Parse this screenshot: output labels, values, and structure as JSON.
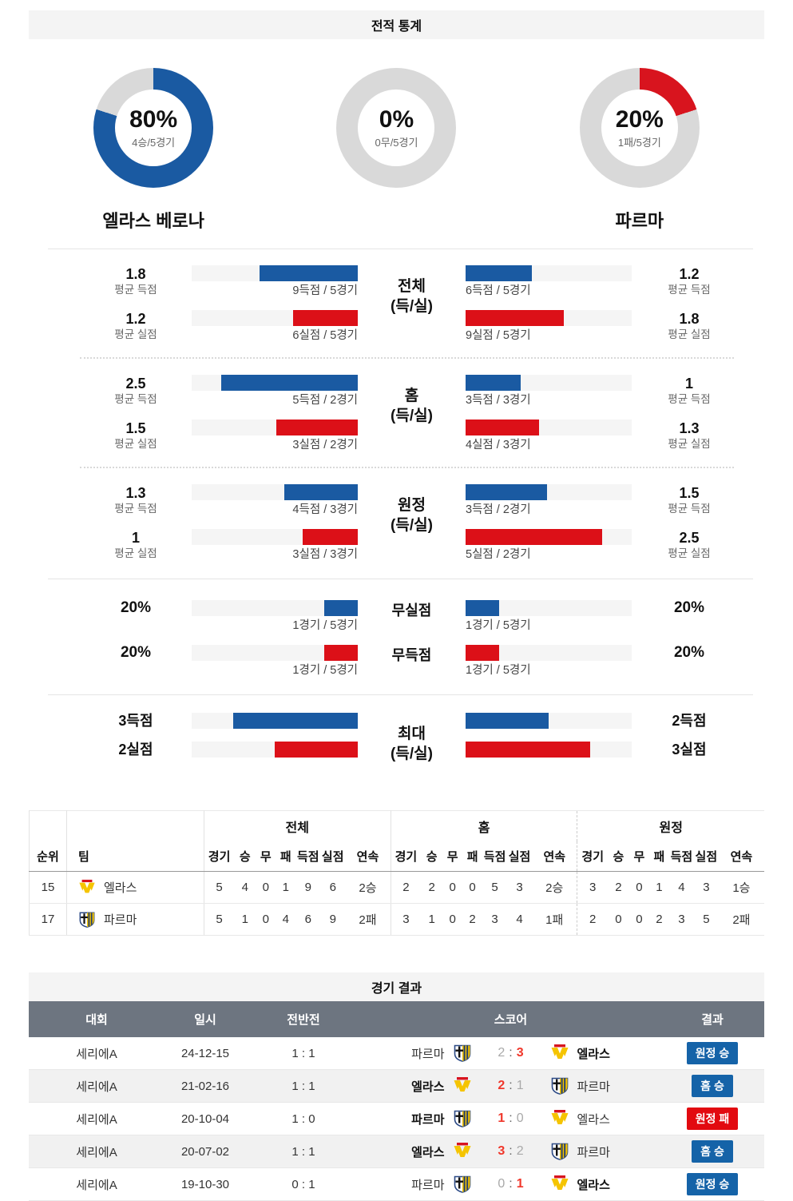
{
  "colors": {
    "accent_blue": "#1a5aa2",
    "accent_red": "#dc1018",
    "donut_gray": "#d9d9d9",
    "track_gray": "#f5f5f5",
    "band_gray": "#f4f4f4",
    "header_slate": "#6d7580",
    "badge_blue": "#1563a8",
    "badge_red": "#e20a10",
    "score_win_red": "#f0372b"
  },
  "stats": {
    "title": "전적 통계",
    "home_team": "엘라스 베로나",
    "away_team": "파르마",
    "donuts": [
      {
        "pct": "80%",
        "sub": "4승/5경기",
        "value": 80
      },
      {
        "pct": "0%",
        "sub": "0무/5경기",
        "value": 0
      },
      {
        "pct": "20%",
        "sub": "1패/5경기",
        "value": 20
      }
    ]
  },
  "compare": [
    {
      "center1": "전체",
      "center2": "(득/실)",
      "rows": [
        {
          "left": {
            "value": "1.8",
            "caption": "평균 득점",
            "pct": 59,
            "sub": "9득점 / 5경기"
          },
          "right": {
            "value": "1.2",
            "caption": "평균 득점",
            "pct": 40,
            "sub": "6득점 / 5경기"
          }
        },
        {
          "left": {
            "value": "1.2",
            "caption": "평균 실점",
            "pct": 39,
            "sub": "6실점 / 5경기"
          },
          "right": {
            "value": "1.8",
            "caption": "평균 실점",
            "pct": 59,
            "sub": "9실점 / 5경기"
          }
        }
      ]
    },
    {
      "center1": "홈",
      "center2": "(득/실)",
      "rows": [
        {
          "left": {
            "value": "2.5",
            "caption": "평균 득점",
            "pct": 82,
            "sub": "5득점 / 2경기"
          },
          "right": {
            "value": "1",
            "caption": "평균 득점",
            "pct": 33,
            "sub": "3득점 / 3경기"
          }
        },
        {
          "left": {
            "value": "1.5",
            "caption": "평균 실점",
            "pct": 49,
            "sub": "3실점 / 2경기"
          },
          "right": {
            "value": "1.3",
            "caption": "평균 실점",
            "pct": 44,
            "sub": "4실점 / 3경기"
          }
        }
      ]
    },
    {
      "center1": "원정",
      "center2": "(득/실)",
      "rows": [
        {
          "left": {
            "value": "1.3",
            "caption": "평균 득점",
            "pct": 44,
            "sub": "4득점 / 3경기"
          },
          "right": {
            "value": "1.5",
            "caption": "평균 득점",
            "pct": 49,
            "sub": "3득점 / 2경기"
          }
        },
        {
          "left": {
            "value": "1",
            "caption": "평균 실점",
            "pct": 33,
            "sub": "3실점 / 3경기"
          },
          "right": {
            "value": "2.5",
            "caption": "평균 실점",
            "pct": 82,
            "sub": "5실점 / 2경기"
          }
        }
      ]
    }
  ],
  "zeros": [
    {
      "center": "무실점",
      "left": {
        "label": "20%",
        "pct": 20,
        "sub": "1경기 / 5경기"
      },
      "right": {
        "label": "20%",
        "pct": 20,
        "sub": "1경기 / 5경기"
      }
    },
    {
      "center": "무득점",
      "left": {
        "label": "20%",
        "pct": 20,
        "sub": "1경기 / 5경기"
      },
      "right": {
        "label": "20%",
        "pct": 20,
        "sub": "1경기 / 5경기"
      }
    }
  ],
  "max": {
    "center1": "최대",
    "center2": "(득/실)",
    "rows": [
      {
        "left_label": "3득점",
        "left_pct": 75,
        "right_pct": 50,
        "right_label": "2득점"
      },
      {
        "left_label": "2실점",
        "left_pct": 50,
        "right_pct": 75,
        "right_label": "3실점"
      }
    ]
  },
  "league_table": {
    "group_headers": {
      "overall": "전체",
      "home": "홈",
      "away": "원정"
    },
    "cols": {
      "rank": "순위",
      "team": "팀",
      "gp": "경기",
      "w": "승",
      "d": "무",
      "l": "패",
      "gf": "득점",
      "ga": "실점",
      "streak": "연속"
    },
    "rows": [
      {
        "rank": "15",
        "team": "엘라스",
        "logo": "verona",
        "overall": [
          "5",
          "4",
          "0",
          "1",
          "9",
          "6",
          "2승"
        ],
        "home": [
          "2",
          "2",
          "0",
          "0",
          "5",
          "3",
          "2승"
        ],
        "away": [
          "3",
          "2",
          "0",
          "1",
          "4",
          "3",
          "1승"
        ]
      },
      {
        "rank": "17",
        "team": "파르마",
        "logo": "parma",
        "overall": [
          "5",
          "1",
          "0",
          "4",
          "6",
          "9",
          "2패"
        ],
        "home": [
          "3",
          "1",
          "0",
          "2",
          "3",
          "4",
          "1패"
        ],
        "away": [
          "2",
          "0",
          "0",
          "2",
          "3",
          "5",
          "2패"
        ]
      }
    ]
  },
  "results": {
    "title": "경기 결과",
    "headers": {
      "league": "대회",
      "date": "일시",
      "half": "전반전",
      "score": "스코어",
      "result": "결과"
    },
    "rows": [
      {
        "league": "세리에A",
        "date": "24-12-15",
        "half": "1 : 1",
        "home": "파르마",
        "home_score": "2",
        "away_score": "3",
        "away": "엘라스",
        "result": "원정 승",
        "result_color": "blue"
      },
      {
        "league": "세리에A",
        "date": "21-02-16",
        "half": "1 : 1",
        "home": "엘라스",
        "home_score": "2",
        "away_score": "1",
        "away": "파르마",
        "result": "홈 승",
        "result_color": "blue"
      },
      {
        "league": "세리에A",
        "date": "20-10-04",
        "half": "1 : 0",
        "home": "파르마",
        "home_score": "1",
        "away_score": "0",
        "away": "엘라스",
        "result": "원정 패",
        "result_color": "red"
      },
      {
        "league": "세리에A",
        "date": "20-07-02",
        "half": "1 : 1",
        "home": "엘라스",
        "home_score": "3",
        "away_score": "2",
        "away": "파르마",
        "result": "홈 승",
        "result_color": "blue"
      },
      {
        "league": "세리에A",
        "date": "19-10-30",
        "half": "0 : 1",
        "home": "파르마",
        "home_score": "0",
        "away_score": "1",
        "away": "엘라스",
        "result": "원정 승",
        "result_color": "blue"
      }
    ]
  }
}
